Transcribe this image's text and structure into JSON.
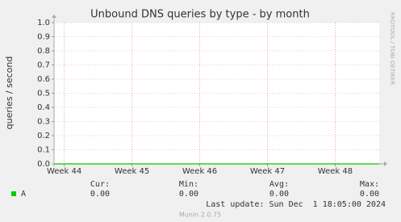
{
  "chart_data": {
    "type": "line",
    "title": "Unbound DNS queries by type - by month",
    "y_label": "queries / second",
    "side_text": "RRDTOOL / TOBI OETIKER",
    "xlim": [
      43.85,
      48.65
    ],
    "xticks": [
      {
        "value": 44,
        "label": "Week 44"
      },
      {
        "value": 45,
        "label": "Week 45"
      },
      {
        "value": 46,
        "label": "Week 46"
      },
      {
        "value": 47,
        "label": "Week 47"
      },
      {
        "value": 48,
        "label": "Week 48"
      }
    ],
    "ylim": [
      0,
      1
    ],
    "yticks": [
      {
        "value": 0,
        "label": "0.0"
      },
      0.1,
      0.2,
      0.3,
      0.4,
      0.5,
      0.6,
      0.7,
      0.8,
      0.9,
      {
        "value": 1,
        "label": "1.0"
      }
    ],
    "grid": true,
    "series": [
      {
        "name": "A",
        "color": "#00cc00",
        "x": [
          43.85,
          48.65
        ],
        "values": [
          0,
          0
        ]
      }
    ],
    "stats": {
      "headers": [
        "Cur:",
        "Min:",
        "Avg:",
        "Max:"
      ],
      "rows": [
        {
          "values": [
            0,
            0,
            0,
            0
          ],
          "value_labels": [
            "0.00",
            "0.00",
            "0.00",
            "0.00"
          ]
        }
      ]
    },
    "last_update": "Last update: Sun Dec  1 18:05:00 2024",
    "footer": "Munin 2.0.75"
  }
}
